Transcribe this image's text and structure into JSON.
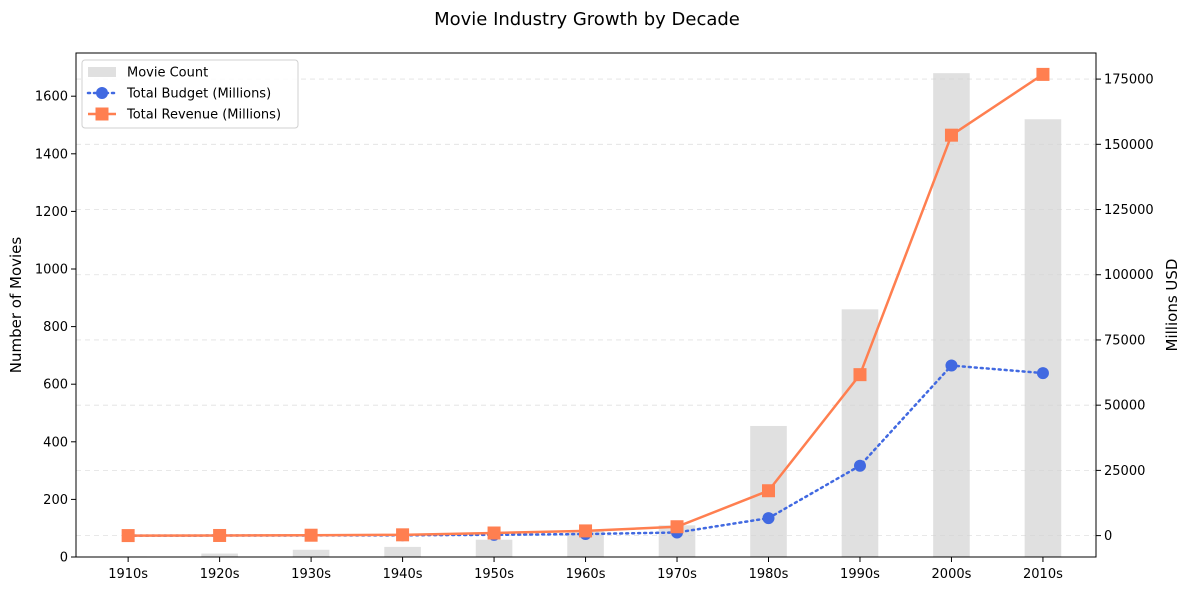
{
  "chart_data": {
    "type": "bar",
    "title": "Movie Industry Growth by Decade",
    "categories": [
      "1910s",
      "1920s",
      "1930s",
      "1940s",
      "1950s",
      "1960s",
      "1970s",
      "1980s",
      "1990s",
      "2000s",
      "2010s"
    ],
    "ylabel": "Number of Movies",
    "y2label": "Millions USD",
    "ylim": [
      0,
      1750
    ],
    "y2lim": [
      -8200,
      185000
    ],
    "yticks": [
      0,
      200,
      400,
      600,
      800,
      1000,
      1200,
      1400,
      1600
    ],
    "y2ticks": [
      0,
      25000,
      50000,
      75000,
      100000,
      125000,
      150000,
      175000
    ],
    "grid": true,
    "legend_position": "top-left",
    "series": [
      {
        "name": "Movie Count",
        "kind": "bar",
        "axis": "left",
        "color": "#d3d3d3",
        "values": [
          2,
          12,
          25,
          35,
          60,
          90,
          110,
          455,
          860,
          1680,
          1520
        ]
      },
      {
        "name": "Total Budget (Millions)",
        "kind": "line",
        "axis": "right",
        "style": "dotted",
        "marker": "circle",
        "color": "#4169e1",
        "values": [
          5,
          20,
          60,
          120,
          300,
          600,
          1200,
          6700,
          26800,
          65200,
          62300
        ]
      },
      {
        "name": "Total Revenue (Millions)",
        "kind": "line",
        "axis": "right",
        "style": "solid",
        "marker": "square",
        "color": "#ff7f50",
        "values": [
          10,
          50,
          150,
          300,
          1000,
          1800,
          3400,
          17200,
          61700,
          153500,
          176800
        ]
      }
    ]
  }
}
